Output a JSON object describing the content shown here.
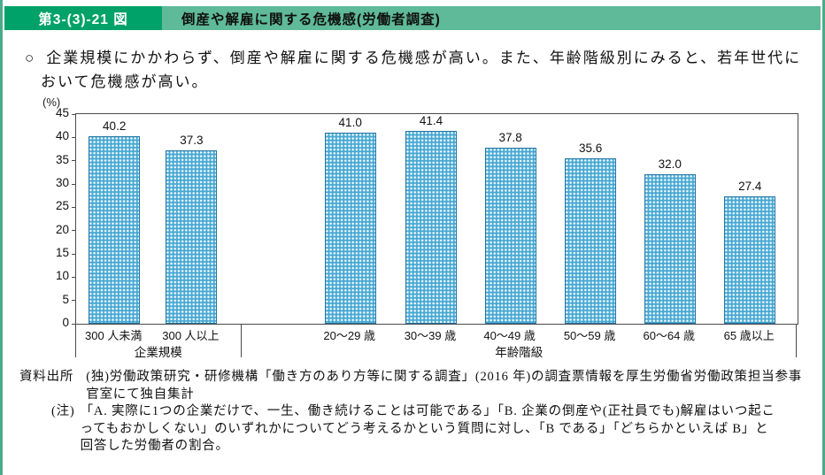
{
  "header": {
    "figure_label": "第3-(3)-21 図",
    "title": "倒産や解雇に関する危機感(労働者調査)"
  },
  "summary": {
    "bullet": "○",
    "text": "企業規模にかかわらず、倒産や解雇に関する危機感が高い。また、年齢階級別にみると、若年世代において危機感が高い。"
  },
  "chart_data": {
    "type": "bar",
    "title": "倒産や解雇に関する危機感(労働者調査)",
    "unit_label": "(%)",
    "ylim": [
      0,
      45
    ],
    "yticks": [
      0,
      5,
      10,
      15,
      20,
      25,
      30,
      35,
      40,
      45
    ],
    "grid": false,
    "legend": "none",
    "bar_color": "#46a8d3",
    "groups": [
      {
        "name": "企業規模",
        "categories": [
          "300 人未満",
          "300 人以上"
        ],
        "values": [
          40.2,
          37.3
        ]
      },
      {
        "name": "年齢階級",
        "categories": [
          "20〜29 歳",
          "30〜39 歳",
          "40〜49 歳",
          "50〜59 歳",
          "60〜64 歳",
          "65 歳以上"
        ],
        "values": [
          41.0,
          41.4,
          37.8,
          35.6,
          32.0,
          27.4
        ]
      }
    ]
  },
  "notes": {
    "source_label": "資料出所",
    "source_text": "(独)労働政策研究・研修機構「働き方のあり方等に関する調査」(2016 年)の調査票情報を厚生労働省労働政策担当参事官室にて独自集計",
    "note_label": "(注)",
    "note_text": "「A. 実際に1つの企業だけで、一生、働き続けることは可能である」「B. 企業の倒産や(正社員でも)解雇はいつ起こってもおかしくない」のいずれかについてどう考えるかという質問に対し、「B である」「どちらかといえば B」と回答した労働者の割合。"
  }
}
